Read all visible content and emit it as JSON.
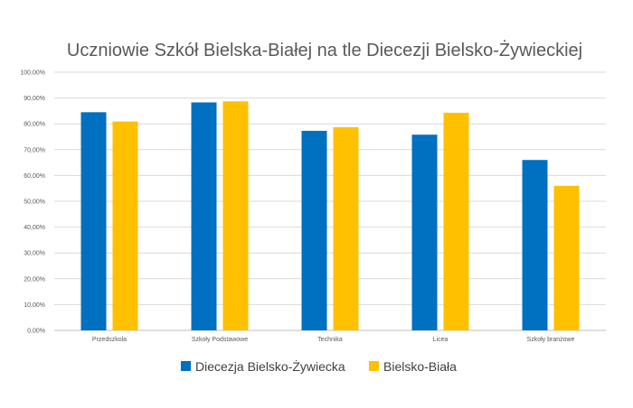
{
  "chart_data": {
    "type": "bar",
    "title": "Uczniowie Szkół Bielska-Białej na tle Diecezji Bielsko-Żywieckiej",
    "xlabel": "",
    "ylabel": "",
    "categories": [
      "Przedszkola",
      "Szkoły Podstawowe",
      "Technika",
      "Licea",
      "Szkoły branżowe"
    ],
    "series": [
      {
        "name": "Diecezja Bielsko-Żywiecka",
        "color": "#0070c0",
        "values": [
          84.5,
          88.3,
          77.3,
          75.8,
          66.0
        ]
      },
      {
        "name": "Bielsko-Biała",
        "color": "#ffc000",
        "values": [
          80.9,
          88.7,
          78.7,
          84.3,
          56.0
        ]
      }
    ],
    "ylim": [
      0,
      100
    ],
    "yticks": [
      0,
      10,
      20,
      30,
      40,
      50,
      60,
      70,
      80,
      90,
      100
    ],
    "ytick_labels": [
      "0,00%",
      "10,00%",
      "20,00%",
      "30,00%",
      "40,00%",
      "50,00%",
      "60,00%",
      "70,00%",
      "80,00%",
      "90,00%",
      "100,00%"
    ],
    "grid": true,
    "legend_position": "bottom"
  }
}
